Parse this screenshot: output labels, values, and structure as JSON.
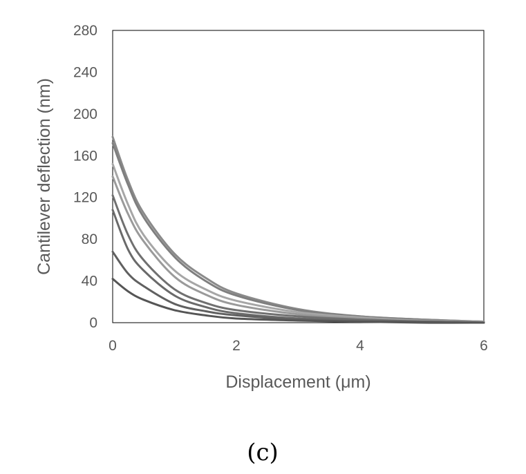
{
  "panel_label": "(c)",
  "chart_data": {
    "type": "line",
    "title": "",
    "xlabel": "Displacement (μm)",
    "ylabel": "Cantilever deflection (nm)",
    "xlim": [
      0,
      6
    ],
    "ylim": [
      0,
      280
    ],
    "xticks": [
      0,
      2,
      4,
      6
    ],
    "yticks": [
      0,
      40,
      80,
      120,
      160,
      200,
      240,
      280
    ],
    "grid": false,
    "legend": "none",
    "series": [
      {
        "color": "#8a8a8a",
        "x": [
          0,
          0.25,
          0.5,
          1,
          1.5,
          2,
          3,
          4,
          5,
          6
        ],
        "y": [
          178,
          136,
          105,
          66,
          43,
          28,
          13,
          6,
          3,
          1
        ]
      },
      {
        "color": "#7f7f7f",
        "x": [
          0,
          0.25,
          0.5,
          1,
          1.5,
          2,
          3,
          4,
          5,
          6
        ],
        "y": [
          172,
          132,
          101,
          63,
          40,
          26,
          12,
          6,
          3,
          1
        ]
      },
      {
        "color": "#a6a6a6",
        "x": [
          0,
          0.25,
          0.5,
          1,
          1.5,
          2,
          3,
          4,
          5,
          6
        ],
        "y": [
          152,
          113,
          84,
          50,
          32,
          21,
          10,
          5,
          2,
          1
        ]
      },
      {
        "color": "#9a9a9a",
        "x": [
          0,
          0.25,
          0.5,
          1,
          1.5,
          2,
          3,
          4,
          5,
          6
        ],
        "y": [
          140,
          104,
          78,
          44,
          27,
          17,
          8,
          4,
          2,
          1
        ]
      },
      {
        "color": "#707070",
        "x": [
          0,
          0.25,
          0.5,
          1,
          1.5,
          2,
          3,
          4,
          5,
          6
        ],
        "y": [
          122,
          84,
          60,
          32,
          19,
          12,
          6,
          3,
          1,
          0
        ]
      },
      {
        "color": "#6a6a6a",
        "x": [
          0,
          0.25,
          0.5,
          1,
          1.5,
          2,
          3,
          4,
          5,
          6
        ],
        "y": [
          108,
          70,
          50,
          26,
          15,
          9,
          4,
          2,
          1,
          0
        ]
      },
      {
        "color": "#606060",
        "x": [
          0,
          0.25,
          0.5,
          1,
          1.5,
          2,
          3,
          4,
          5,
          6
        ],
        "y": [
          68,
          47,
          35,
          18,
          11,
          7,
          3,
          1,
          1,
          0
        ]
      },
      {
        "color": "#555555",
        "x": [
          0,
          0.25,
          0.5,
          1,
          1.5,
          2,
          3,
          4,
          5,
          6
        ],
        "y": [
          42,
          30,
          22,
          12,
          7,
          4,
          2,
          1,
          0,
          0
        ]
      }
    ]
  }
}
